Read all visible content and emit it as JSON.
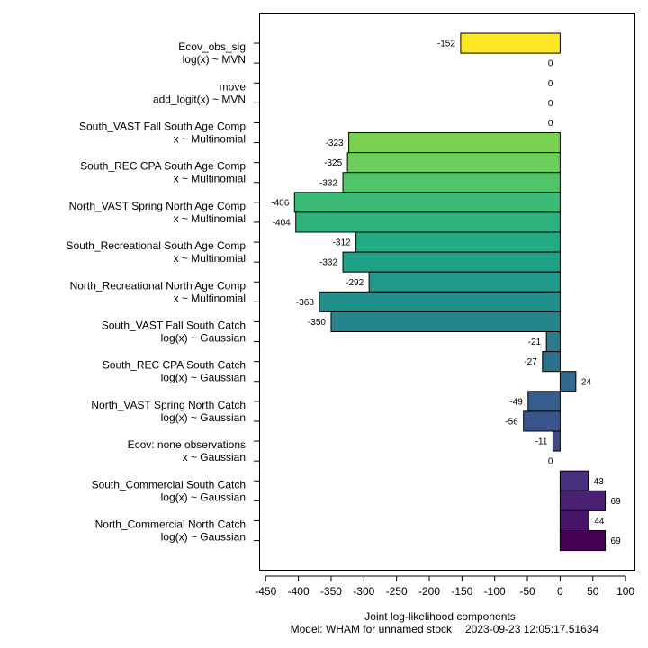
{
  "chart_data": {
    "type": "bar",
    "orientation": "horizontal",
    "xlabel": "Joint log-likelihood components",
    "xlim": [
      -460,
      115
    ],
    "xticks": [
      -450,
      -400,
      -350,
      -300,
      -250,
      -200,
      -150,
      -100,
      -50,
      0,
      50,
      100
    ],
    "footer": {
      "model": "Model: WHAM for unnamed stock",
      "timestamp": "2023-09-23 12:05:17.51634"
    },
    "groups": [
      {
        "name": "Ecov_obs_sig",
        "dist": "log(x) ~ MVN"
      },
      {
        "name": "move",
        "dist": "add_logit(x) ~ MVN"
      },
      {
        "name": "South_VAST Fall South Age Comp",
        "dist": "x ~ Multinomial"
      },
      {
        "name": "South_REC CPA South Age Comp",
        "dist": "x ~ Multinomial"
      },
      {
        "name": "North_VAST Spring North Age Comp",
        "dist": "x ~ Multinomial"
      },
      {
        "name": "South_Recreational South Age Comp",
        "dist": "x ~ Multinomial"
      },
      {
        "name": "North_Recreational North Age Comp",
        "dist": "x ~ Multinomial"
      },
      {
        "name": "South_VAST Fall South Catch",
        "dist": "log(x) ~ Gaussian"
      },
      {
        "name": "South_REC CPA South Catch",
        "dist": "log(x) ~ Gaussian"
      },
      {
        "name": "North_VAST Spring North Catch",
        "dist": "log(x) ~ Gaussian"
      },
      {
        "name": "Ecov: none observations",
        "dist": "x ~ Gaussian"
      },
      {
        "name": "South_Commercial South Catch",
        "dist": "log(x) ~ Gaussian"
      },
      {
        "name": "North_Commercial North Catch",
        "dist": "log(x) ~ Gaussian"
      }
    ],
    "bars": [
      {
        "value": -152,
        "label": "-152",
        "color": "#FDE725"
      },
      {
        "value": 0,
        "label": "0",
        "color": "#F1E51D"
      },
      {
        "value": 0,
        "label": "0",
        "color": "#DDE318"
      },
      {
        "value": 0,
        "label": "0",
        "color": "#C8E020"
      },
      {
        "value": 0,
        "label": "0",
        "color": "#B5DE2B"
      },
      {
        "value": -323,
        "label": "-323",
        "color": "#7AD151"
      },
      {
        "value": -325,
        "label": "-325",
        "color": "#6CCD5A"
      },
      {
        "value": -332,
        "label": "-332",
        "color": "#4FC46A"
      },
      {
        "value": -406,
        "label": "-406",
        "color": "#3BBB75"
      },
      {
        "value": -404,
        "label": "-404",
        "color": "#2DB27D"
      },
      {
        "value": -312,
        "label": "-312",
        "color": "#24AA83"
      },
      {
        "value": -332,
        "label": "-332",
        "color": "#1FA187"
      },
      {
        "value": -292,
        "label": "-292",
        "color": "#1E9A8A"
      },
      {
        "value": -368,
        "label": "-368",
        "color": "#21908D"
      },
      {
        "value": -350,
        "label": "-350",
        "color": "#25858E"
      },
      {
        "value": -21,
        "label": "-21",
        "color": "#297B8E"
      },
      {
        "value": -27,
        "label": "-27",
        "color": "#2C728E"
      },
      {
        "value": 24,
        "label": "24",
        "color": "#31688E"
      },
      {
        "value": -49,
        "label": "-49",
        "color": "#355E8D"
      },
      {
        "value": -56,
        "label": "-56",
        "color": "#3A548C"
      },
      {
        "value": -11,
        "label": "-11",
        "color": "#3F4889"
      },
      {
        "value": 0,
        "label": "0",
        "color": "#443B84"
      },
      {
        "value": 43,
        "label": "43",
        "color": "#472F7D"
      },
      {
        "value": 69,
        "label": "69",
        "color": "#482173"
      },
      {
        "value": 44,
        "label": "44",
        "color": "#481467"
      },
      {
        "value": 69,
        "label": "69",
        "color": "#440154"
      }
    ]
  }
}
